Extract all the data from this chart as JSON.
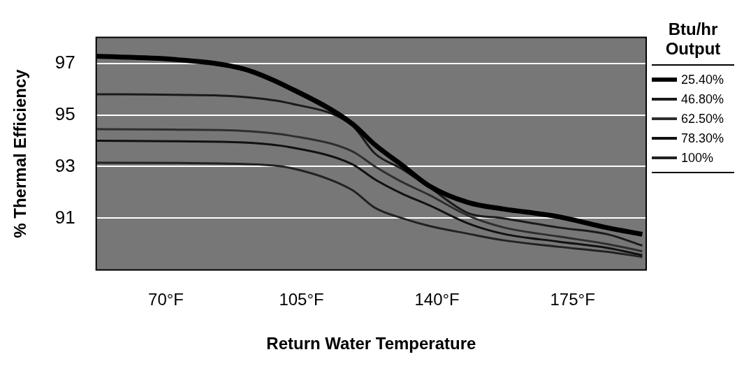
{
  "chart_data": {
    "type": "line",
    "xlabel": "Return Water Temperature",
    "ylabel": "% Thermal Efficiency",
    "legend_title": "Btu/hr Output",
    "x": [
      52,
      72,
      90,
      102,
      118,
      124,
      131,
      138,
      148,
      157,
      171,
      184,
      193
    ],
    "series": [
      {
        "name": "25.40%",
        "color": "#000000",
        "values": [
          97.27,
          97.15,
          96.78,
          96.04,
          94.67,
          93.84,
          93.05,
          92.25,
          91.61,
          91.36,
          91.07,
          90.63,
          90.38
        ]
      },
      {
        "name": "46.80%",
        "color": "#1a1a1a",
        "values": [
          95.8,
          95.78,
          95.7,
          95.45,
          94.6,
          93.5,
          92.9,
          92.2,
          91.2,
          91.0,
          90.65,
          90.38,
          89.94
        ]
      },
      {
        "name": "62.50%",
        "color": "#2e2e2e",
        "values": [
          94.45,
          94.43,
          94.38,
          94.2,
          93.6,
          93.0,
          92.4,
          91.9,
          91.1,
          90.65,
          90.3,
          90.0,
          89.72
        ]
      },
      {
        "name": "78.30%",
        "color": "#111111",
        "values": [
          94.0,
          93.98,
          93.93,
          93.75,
          93.1,
          92.5,
          91.95,
          91.5,
          90.8,
          90.4,
          90.1,
          89.85,
          89.57
        ]
      },
      {
        "name": "100%",
        "color": "#222222",
        "values": [
          93.15,
          93.14,
          93.1,
          92.95,
          92.1,
          91.4,
          91.0,
          90.7,
          90.4,
          90.15,
          89.9,
          89.7,
          89.5
        ]
      }
    ],
    "xlim": [
      52,
      194
    ],
    "xticks": [
      {
        "value": 70,
        "label": "70°F"
      },
      {
        "value": 105,
        "label": "105°F"
      },
      {
        "value": 140,
        "label": "140°F"
      },
      {
        "value": 175,
        "label": "175°F"
      }
    ],
    "ylim": [
      89,
      98
    ],
    "yticks": [
      91,
      93,
      95,
      97
    ],
    "grid": "y",
    "legend": "right",
    "marker": "none",
    "line_style": "solid"
  }
}
